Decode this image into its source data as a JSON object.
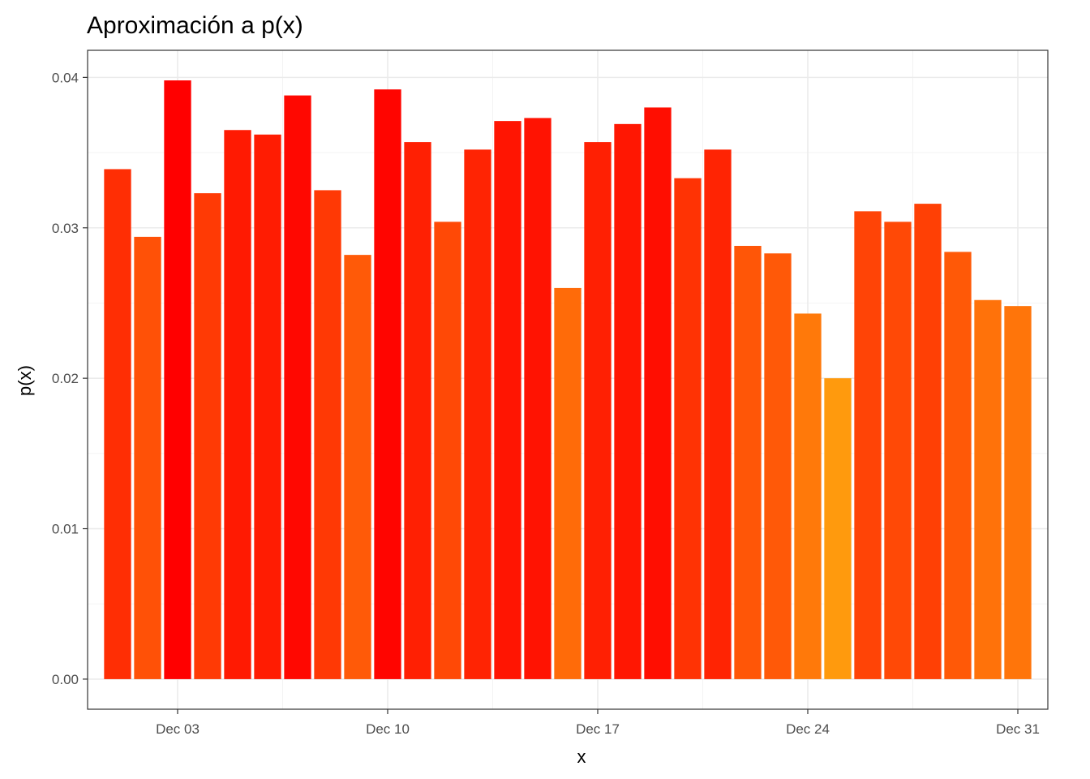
{
  "chart_data": {
    "type": "bar",
    "title": "Aproximación a p(x)",
    "xlabel": "x",
    "ylabel": "p(x)",
    "x": [
      "2023-12-01",
      "2023-12-02",
      "2023-12-03",
      "2023-12-04",
      "2023-12-05",
      "2023-12-06",
      "2023-12-07",
      "2023-12-08",
      "2023-12-09",
      "2023-12-10",
      "2023-12-11",
      "2023-12-12",
      "2023-12-13",
      "2023-12-14",
      "2023-12-15",
      "2023-12-16",
      "2023-12-17",
      "2023-12-18",
      "2023-12-19",
      "2023-12-20",
      "2023-12-21",
      "2023-12-22",
      "2023-12-23",
      "2023-12-24",
      "2023-12-25",
      "2023-12-26",
      "2023-12-27",
      "2023-12-28",
      "2023-12-29",
      "2023-12-30",
      "2023-12-31"
    ],
    "values": [
      0.0339,
      0.0294,
      0.0398,
      0.0323,
      0.0365,
      0.0362,
      0.0388,
      0.0325,
      0.0282,
      0.0392,
      0.0357,
      0.0304,
      0.0352,
      0.0371,
      0.0373,
      0.026,
      0.0357,
      0.0369,
      0.038,
      0.0333,
      0.0352,
      0.0288,
      0.0283,
      0.0243,
      0.02,
      0.0311,
      0.0304,
      0.0316,
      0.0284,
      0.0252,
      0.0248
    ],
    "ylim": [
      -0.002,
      0.0418
    ],
    "yticks": [
      0.0,
      0.01,
      0.02,
      0.03,
      0.04
    ],
    "ytick_labels": [
      "0.00",
      "0.01",
      "0.02",
      "0.03",
      "0.04"
    ],
    "xticks": [
      "2023-12-03",
      "2023-12-10",
      "2023-12-17",
      "2023-12-24",
      "2023-12-31"
    ],
    "xtick_labels": [
      "Dec 03",
      "Dec 10",
      "Dec 17",
      "Dec 24",
      "Dec 31"
    ],
    "xlim_dates": [
      "2023-11-30",
      "2024-01-01"
    ],
    "grid": true,
    "legend": "none",
    "color_scale": {
      "low": "#ff9a0d",
      "high": "#ff0000",
      "low_value": 0.02,
      "high_value": 0.0398
    }
  }
}
